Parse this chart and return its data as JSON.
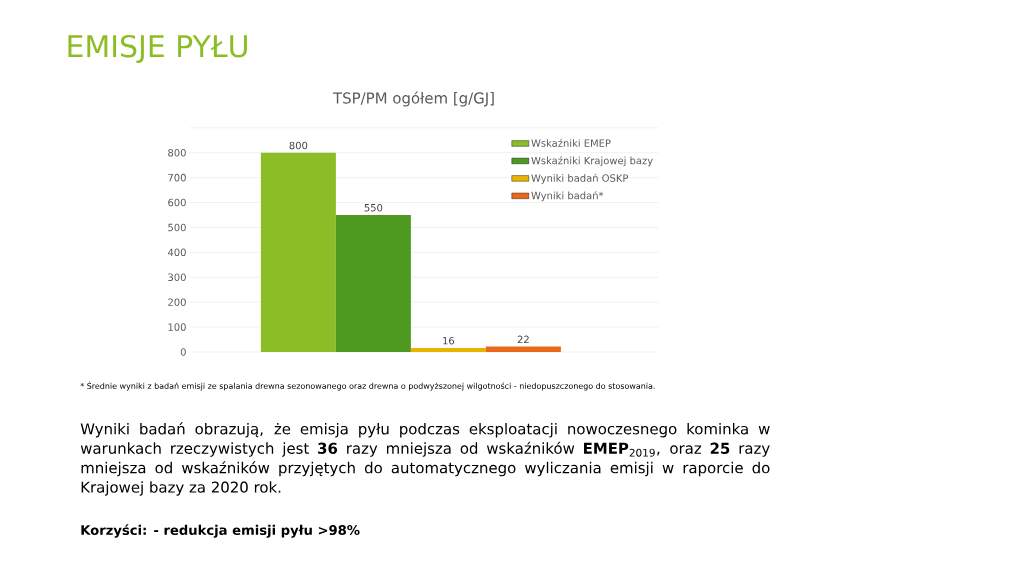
{
  "chart_data": {
    "type": "bar",
    "title": "EMISJE PYŁU",
    "subtitle": "TSP/PM ogółem [g/GJ]",
    "categories": [
      null
    ],
    "series": [
      {
        "name": "Wskaźniki EMEP",
        "color": "#8dbd26",
        "values": [
          800
        ]
      },
      {
        "name": "Wskaźniki Krajowej bazy",
        "color": "#4e9a20",
        "values": [
          550
        ]
      },
      {
        "name": "Wyniki badań OSKP",
        "color": "#e8b400",
        "values": [
          16
        ]
      },
      {
        "name": "Wyniki badań*",
        "color": "#e8691a",
        "values": [
          22
        ]
      }
    ],
    "ylim": [
      0,
      900
    ],
    "yticks": [
      0,
      100,
      200,
      300,
      400,
      500,
      600,
      700,
      800,
      {
        "value": 900,
        "label": null
      }
    ],
    "grid": "y",
    "legend": "top right",
    "data_labels": true,
    "annotations": [
      "* Średnie wyniki z badań emisji ze spalania drewna sezonowanego oraz drewna o podwyższonej wilgotności - niedopuszczonego do stosowania.",
      "Wyniki badań obrazują, że emisja pyłu podczas eksploatacji nowoczesnego kominka w warunkach rzeczywistych jest **36** razy mniejsza od wskaźników **EMEP**$_{2019}$, oraz **25** razy mniejsza od wskaźników przyjętych do automatycznego wyliczania emisji w raporcie do Krajowej bazy za 2020 rok.",
      "Korzyści: - redukcja emisji pyłu >98%"
    ]
  }
}
